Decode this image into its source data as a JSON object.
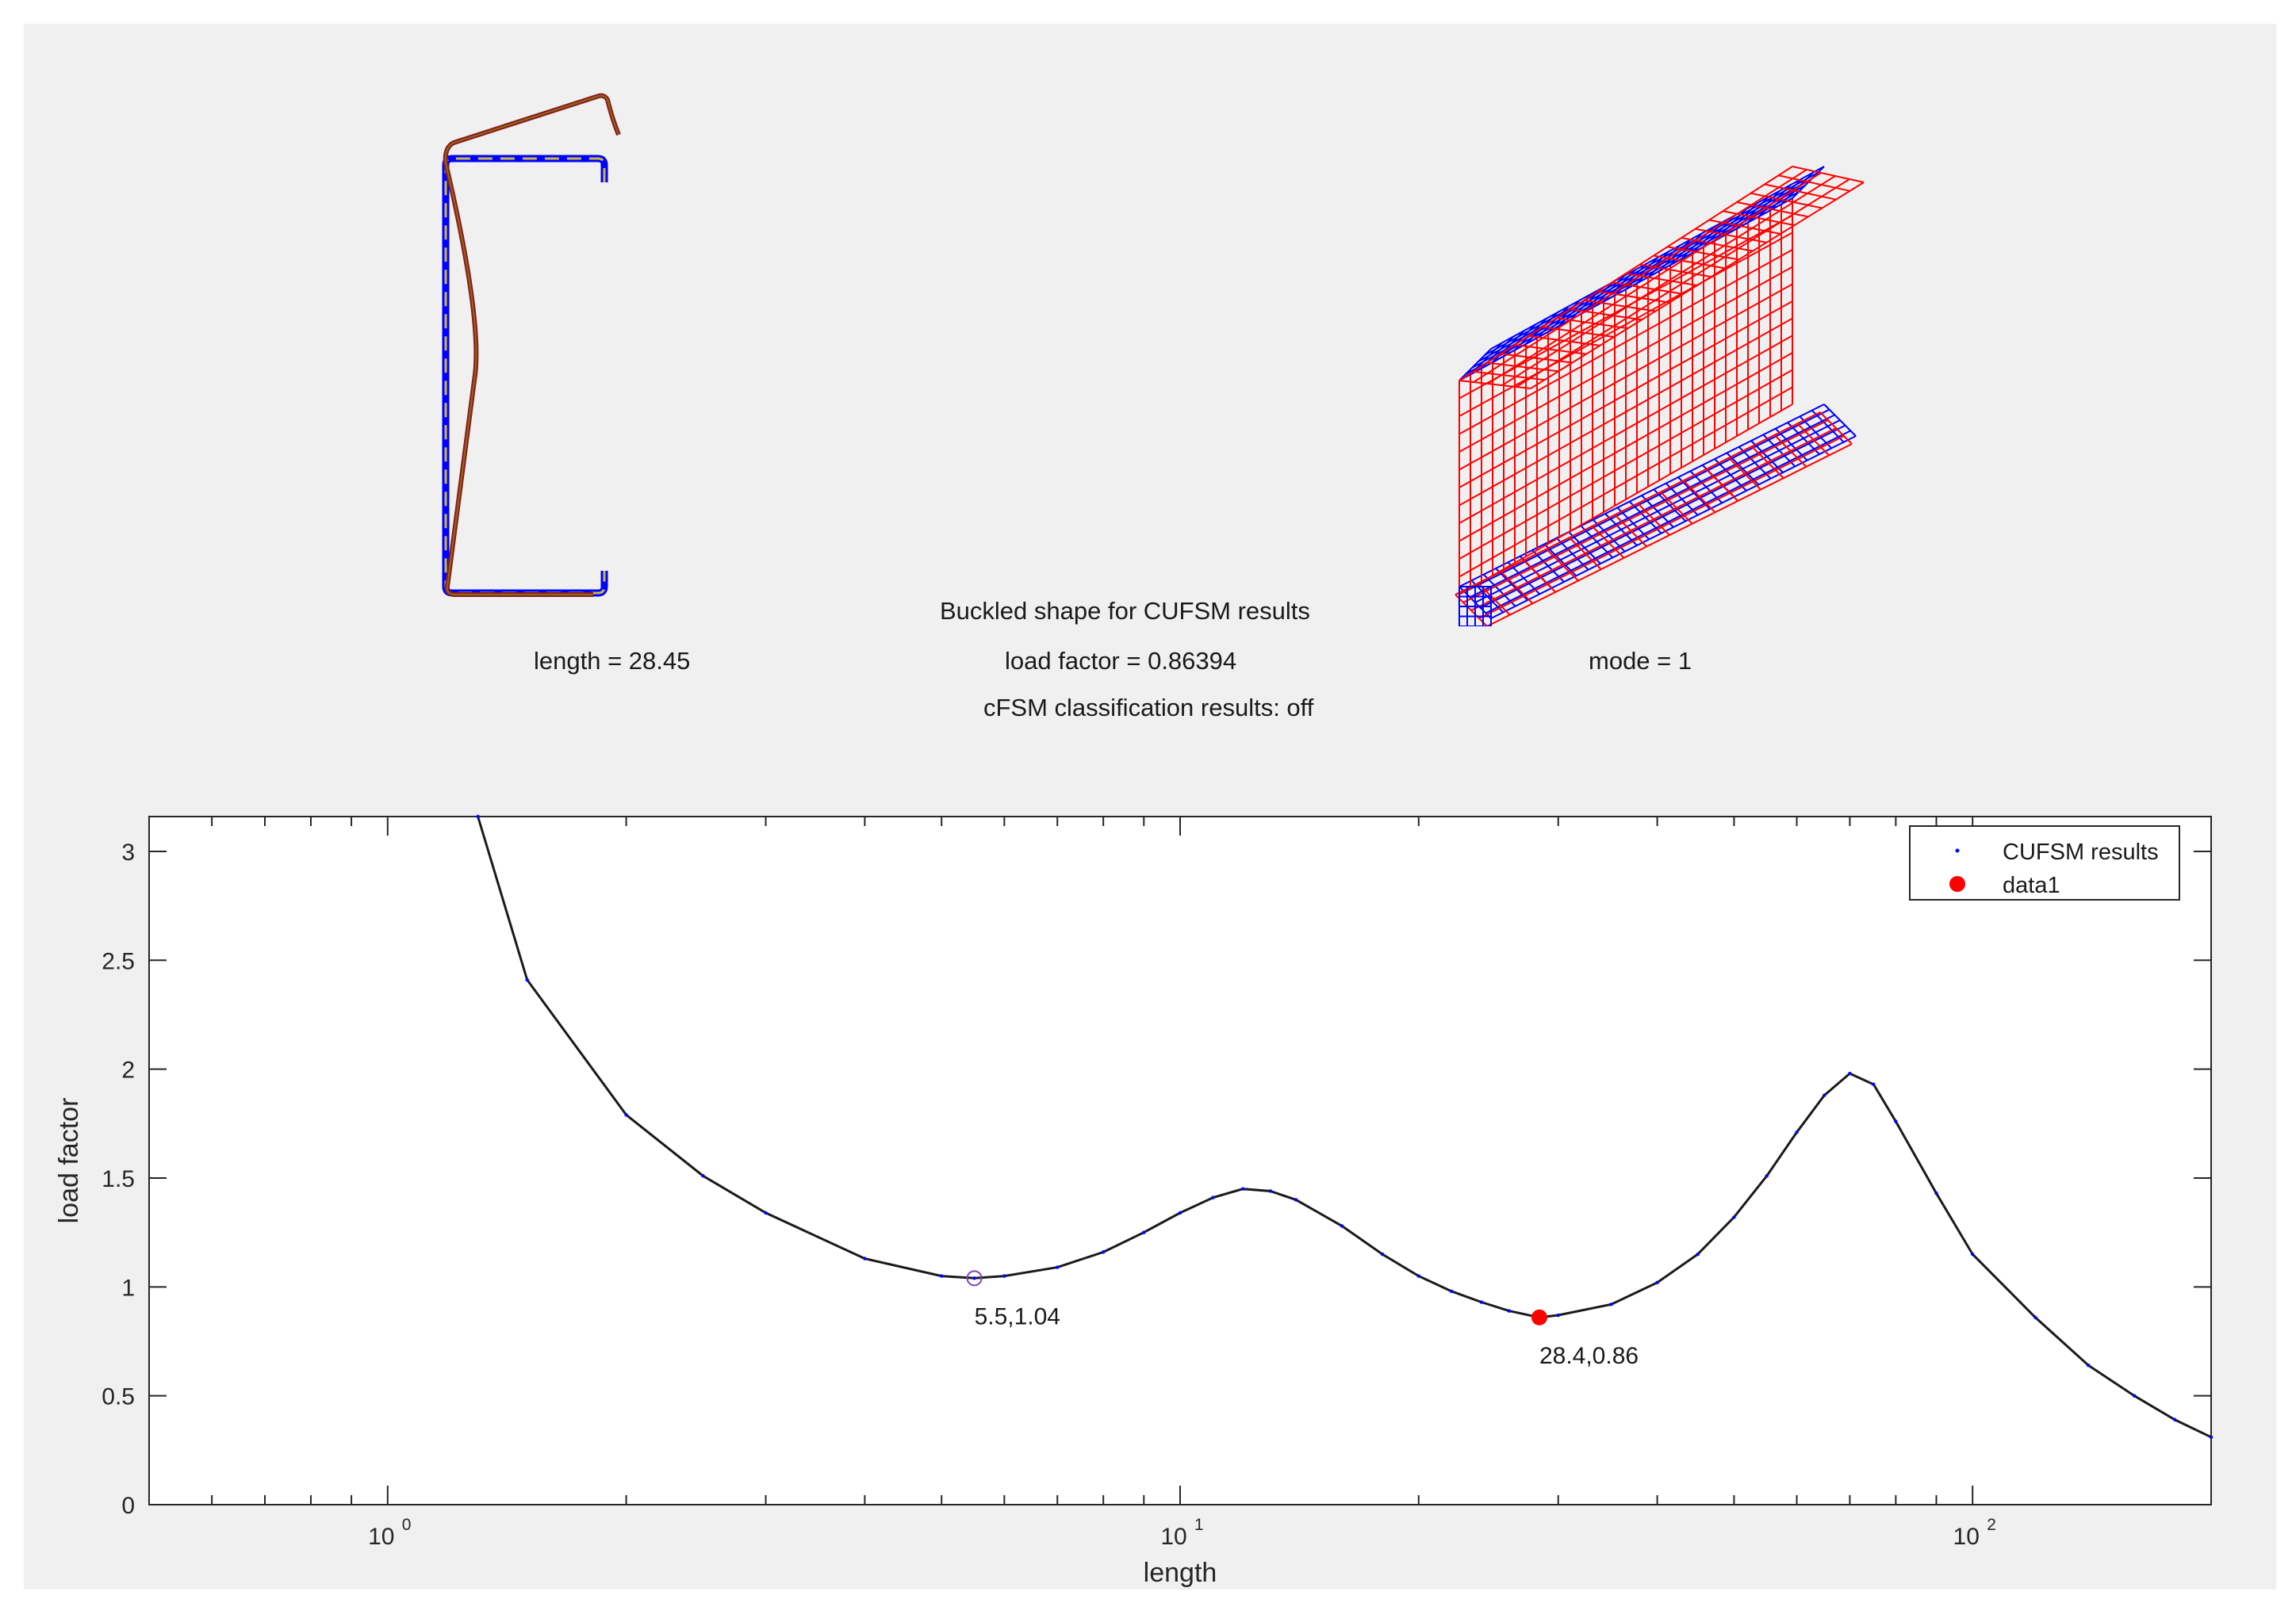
{
  "header": {
    "title": "Buckled shape for  CUFSM results",
    "length_text": "length =  28.45",
    "load_factor_text": "load factor =  0.86394",
    "mode_text": "mode =  1",
    "cfsm_text": "cFSM classification results: off"
  },
  "colors": {
    "panel_bg": "#f0f0f0",
    "undeformed": "#0000ff",
    "deformed": "#ff0000",
    "section_fill": "#8b6b1a",
    "curve": "#1a1a1a",
    "marker": "#ff0000",
    "picked_marker": "#8040c0"
  },
  "chart_data": {
    "type": "line",
    "xlabel": "length",
    "ylabel": "load factor",
    "x_scale": "log",
    "xlim": [
      0.5,
      200
    ],
    "ylim": [
      0,
      3.16
    ],
    "x_ticks": [
      1,
      10,
      100
    ],
    "x_tick_labels": [
      "10",
      "10",
      "10"
    ],
    "x_tick_exponents": [
      "0",
      "1",
      "2"
    ],
    "y_ticks": [
      0,
      0.5,
      1,
      1.5,
      2,
      2.5,
      3
    ],
    "y_tick_labels": [
      "0",
      "0.5",
      "1",
      "1.5",
      "2",
      "2.5",
      "3"
    ],
    "legend_position": "top-right",
    "series": [
      {
        "name": "CUFSM results",
        "x": [
          1.3,
          1.5,
          2,
          2.5,
          3,
          4,
          5,
          5.5,
          6,
          7,
          8,
          9,
          10,
          11,
          12,
          13,
          14,
          16,
          18,
          20,
          22,
          24,
          26,
          28.4,
          30,
          35,
          40,
          45,
          50,
          55,
          60,
          65,
          70,
          75,
          80,
          90,
          100,
          120,
          140,
          160,
          180,
          200
        ],
        "y": [
          3.16,
          2.41,
          1.79,
          1.51,
          1.34,
          1.13,
          1.05,
          1.04,
          1.05,
          1.09,
          1.16,
          1.25,
          1.34,
          1.41,
          1.45,
          1.44,
          1.4,
          1.28,
          1.15,
          1.05,
          0.98,
          0.93,
          0.89,
          0.86,
          0.87,
          0.92,
          1.02,
          1.15,
          1.32,
          1.51,
          1.71,
          1.88,
          1.98,
          1.93,
          1.76,
          1.43,
          1.15,
          0.86,
          0.64,
          0.5,
          0.39,
          0.31
        ]
      },
      {
        "name": "data1",
        "x": [
          28.4
        ],
        "y": [
          0.86
        ]
      }
    ],
    "annotations": [
      {
        "x": 5.5,
        "y": 1.04,
        "text": "5.5,1.04"
      },
      {
        "x": 28.4,
        "y": 0.86,
        "text": "28.4,0.86"
      }
    ]
  }
}
